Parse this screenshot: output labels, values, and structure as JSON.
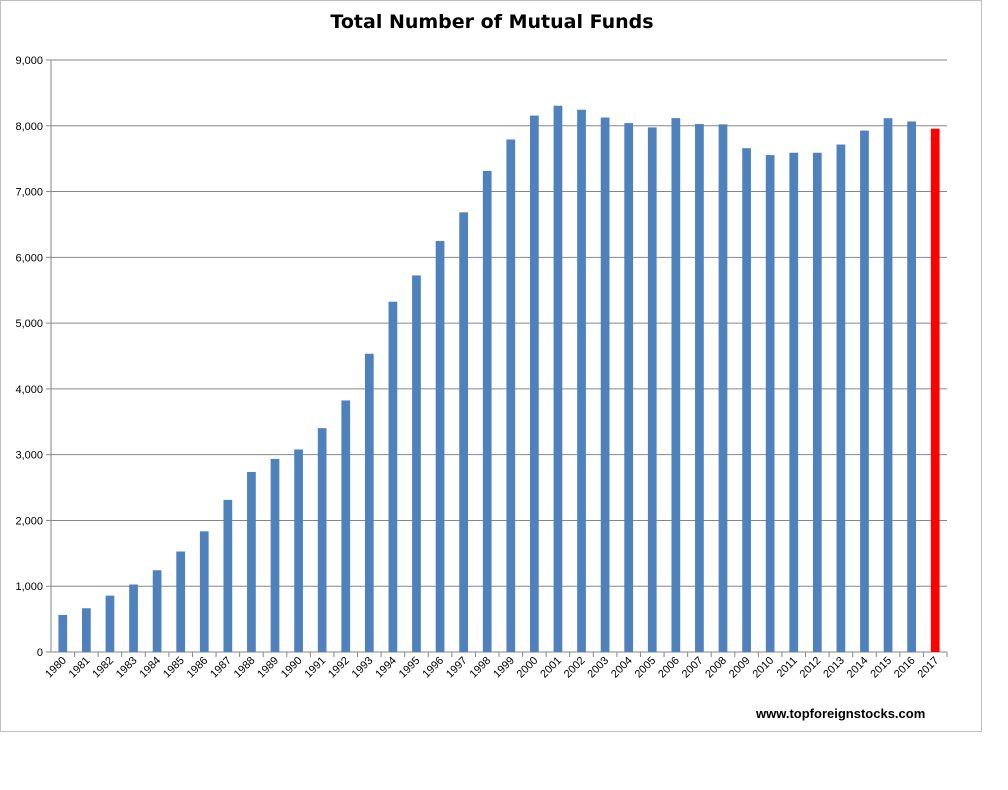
{
  "chart_data": {
    "type": "bar",
    "title": "Total Number of Mutual Funds",
    "xlabel": "",
    "ylabel": "",
    "ylim": [
      0,
      9000
    ],
    "yticks": [
      0,
      1000,
      2000,
      3000,
      4000,
      5000,
      6000,
      7000,
      8000,
      9000
    ],
    "ytick_labels": [
      "0",
      "1,000",
      "2,000",
      "3,000",
      "4,000",
      "5,000",
      "6,000",
      "7,000",
      "8,000",
      "9,000"
    ],
    "grid": true,
    "legend": "none",
    "categories": [
      "1980",
      "1981",
      "1982",
      "1983",
      "1984",
      "1985",
      "1986",
      "1987",
      "1988",
      "1989",
      "1990",
      "1991",
      "1992",
      "1993",
      "1994",
      "1995",
      "1996",
      "1997",
      "1998",
      "1999",
      "2000",
      "2001",
      "2002",
      "2003",
      "2004",
      "2005",
      "2006",
      "2007",
      "2008",
      "2009",
      "2010",
      "2011",
      "2012",
      "2013",
      "2014",
      "2015",
      "2016",
      "2017"
    ],
    "values": [
      564,
      665,
      857,
      1026,
      1243,
      1528,
      1835,
      2312,
      2737,
      2935,
      3079,
      3403,
      3824,
      4534,
      5325,
      5725,
      6248,
      6684,
      7314,
      7791,
      8155,
      8305,
      8244,
      8126,
      8041,
      7975,
      8117,
      8026,
      8022,
      7659,
      7555,
      7590,
      7590,
      7715,
      7927,
      8115,
      8066,
      7956
    ],
    "colors": {
      "bar": "#4f81bd",
      "highlight": "#ff0000",
      "grid": "#868686",
      "axis": "#868686"
    },
    "highlight_category": "2017"
  },
  "source": "www.topforeignstocks.com"
}
